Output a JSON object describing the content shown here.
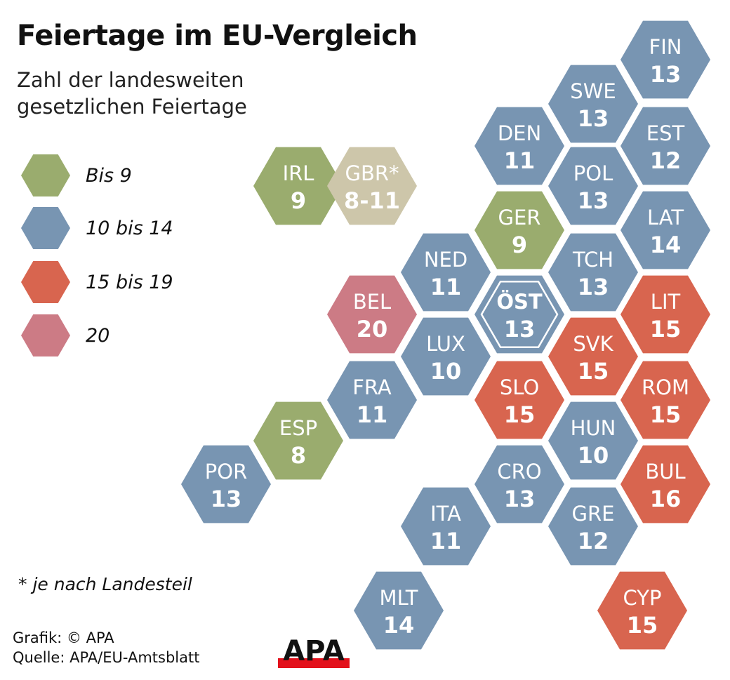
{
  "title": "Feiertage im EU-Vergleich",
  "subtitle": "Zahl der landesweiten gesetzlichen Feiertage",
  "legend": [
    {
      "label": "Bis 9",
      "color": "#9aac6e"
    },
    {
      "label": "10 bis 14",
      "color": "#7895b2"
    },
    {
      "label": "15 bis 19",
      "color": "#d8654f"
    },
    {
      "label": "20",
      "color": "#cc7b85"
    }
  ],
  "other_color": "#cdc6aa",
  "note": "* je nach Landesteil",
  "credit": [
    "Grafik: © APA",
    "Quelle: APA/EU-Amtsblatt"
  ],
  "logo": "APA",
  "countries": [
    {
      "code": "FIN",
      "value": "13",
      "cat": 1
    },
    {
      "code": "SWE",
      "value": "13",
      "cat": 1
    },
    {
      "code": "EST",
      "value": "12",
      "cat": 1
    },
    {
      "code": "DEN",
      "value": "11",
      "cat": 1
    },
    {
      "code": "POL",
      "value": "13",
      "cat": 1
    },
    {
      "code": "IRL",
      "value": "9",
      "cat": 0
    },
    {
      "code": "GBR*",
      "value": "8-11",
      "cat": -1
    },
    {
      "code": "LAT",
      "value": "14",
      "cat": 1
    },
    {
      "code": "GER",
      "value": "9",
      "cat": 0
    },
    {
      "code": "NED",
      "value": "11",
      "cat": 1
    },
    {
      "code": "TCH",
      "value": "13",
      "cat": 1
    },
    {
      "code": "BEL",
      "value": "20",
      "cat": 3
    },
    {
      "code": "ÖST",
      "value": "13",
      "cat": 1,
      "highlight": true
    },
    {
      "code": "LIT",
      "value": "15",
      "cat": 2
    },
    {
      "code": "LUX",
      "value": "10",
      "cat": 1
    },
    {
      "code": "SVK",
      "value": "15",
      "cat": 2
    },
    {
      "code": "FRA",
      "value": "11",
      "cat": 1
    },
    {
      "code": "SLO",
      "value": "15",
      "cat": 2
    },
    {
      "code": "ROM",
      "value": "15",
      "cat": 2
    },
    {
      "code": "ESP",
      "value": "8",
      "cat": 0
    },
    {
      "code": "HUN",
      "value": "10",
      "cat": 1
    },
    {
      "code": "POR",
      "value": "13",
      "cat": 1
    },
    {
      "code": "CRO",
      "value": "13",
      "cat": 1
    },
    {
      "code": "BUL",
      "value": "16",
      "cat": 2
    },
    {
      "code": "ITA",
      "value": "11",
      "cat": 1
    },
    {
      "code": "GRE",
      "value": "12",
      "cat": 1
    },
    {
      "code": "MLT",
      "value": "14",
      "cat": 1
    },
    {
      "code": "CYP",
      "value": "15",
      "cat": 2
    }
  ]
}
